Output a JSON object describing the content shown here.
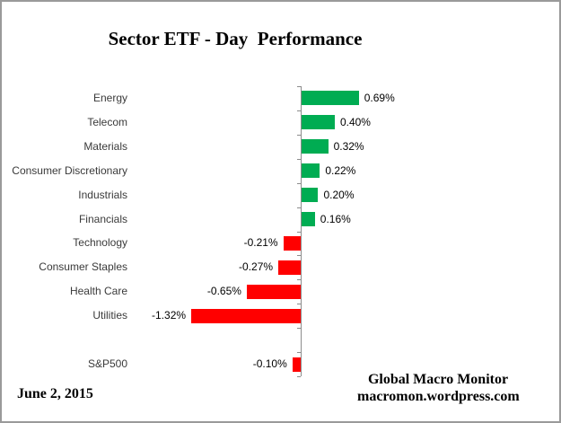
{
  "title": "Sector ETF - Day  Performance",
  "footer": {
    "date": "June 2, 2015",
    "credit_line1": "Global Macro Monitor",
    "credit_line2": "macromon.wordpress.com"
  },
  "colors": {
    "positive_bar": "#00AC52",
    "negative_bar": "#FF0000",
    "axis": "#8C8C8C",
    "frame_border": "#9A9A9A",
    "category_text": "#3A3A3A",
    "value_text": "#000000"
  },
  "chart_data": {
    "type": "bar",
    "orientation": "horizontal",
    "title": "Sector ETF - Day  Performance",
    "xlabel": "",
    "ylabel": "",
    "grid": false,
    "legend": false,
    "value_unit": "%",
    "approx_value_range": [
      -1.5,
      1.0
    ],
    "categories": [
      "Energy",
      "Telecom",
      "Materials",
      "Consumer Discretionary",
      "Industrials",
      "Financials",
      "Technology",
      "Consumer Staples",
      "Health Care",
      "Utilities",
      "",
      "S&P500"
    ],
    "values": [
      0.69,
      0.4,
      0.32,
      0.22,
      0.2,
      0.16,
      -0.21,
      -0.27,
      -0.65,
      -1.32,
      null,
      -0.1
    ],
    "data_labels": [
      "0.69%",
      "0.40%",
      "0.32%",
      "0.22%",
      "0.20%",
      "0.16%",
      "-0.21%",
      "-0.27%",
      "-0.65%",
      "-1.32%",
      "",
      "-0.10%"
    ]
  }
}
